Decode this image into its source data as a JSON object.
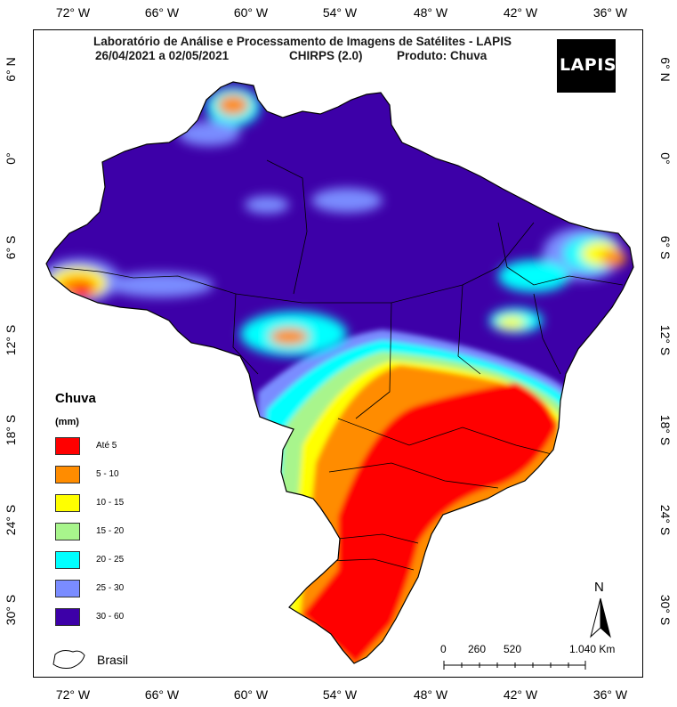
{
  "title_line1": "Laboratório de Análise e Processamento de Imagens de Satélites - LAPIS",
  "period": "26/04/2021  a 02/05/2021",
  "dataset": "CHIRPS (2.0)",
  "product": "Produto: Chuva",
  "logo_text": "LAPIS",
  "lon_ticks": [
    "72° W",
    "66° W",
    "60° W",
    "54° W",
    "48° W",
    "42° W",
    "36° W"
  ],
  "lat_ticks": [
    "6° N",
    "0°",
    "6° S",
    "12° S",
    "18° S",
    "24° S",
    "30° S"
  ],
  "legend": {
    "title": "Chuva",
    "unit": "(mm)",
    "classes": [
      {
        "label": "Até 5",
        "color": "#ff0000"
      },
      {
        "label": "5 - 10",
        "color": "#ff8c00"
      },
      {
        "label": "10 - 15",
        "color": "#ffff00"
      },
      {
        "label": "15 - 20",
        "color": "#a8f58c"
      },
      {
        "label": "20 - 25",
        "color": "#00ffff"
      },
      {
        "label": "25 - 30",
        "color": "#7a8cff"
      },
      {
        "label": "30 - 60",
        "color": "#3d00a8"
      }
    ],
    "boundary_label": "Brasil"
  },
  "scale_bar": {
    "labels": [
      "0",
      "260",
      "520",
      "1.040 Km"
    ]
  },
  "north_label": "N"
}
